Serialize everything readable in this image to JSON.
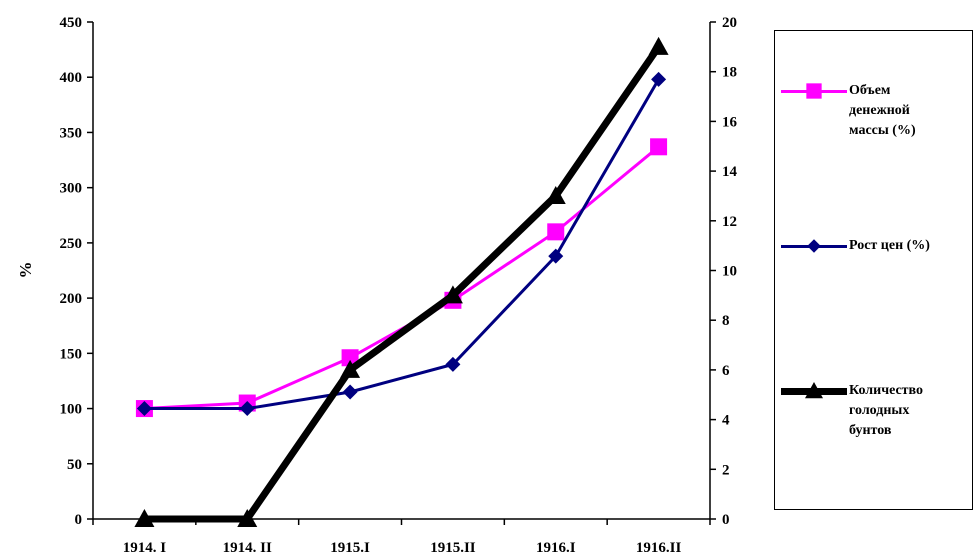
{
  "chart_data": {
    "type": "line",
    "title": "",
    "categories": [
      "1914. I",
      "1914. II",
      "1915.I",
      "1915.II",
      "1916.I",
      "1916.II"
    ],
    "ylabel": "%",
    "ylim": [
      0,
      450
    ],
    "yticks": [
      0,
      50,
      100,
      150,
      200,
      250,
      300,
      350,
      400,
      450
    ],
    "y2lim": [
      0,
      20
    ],
    "y2ticks": [
      0,
      2,
      4,
      6,
      8,
      10,
      12,
      14,
      16,
      18,
      20
    ],
    "legend_position": "right",
    "grid": false,
    "series": [
      {
        "name": "Объем денежной массы (%)",
        "legend_lines": [
          "Объем",
          "денежной",
          "массы (%)"
        ],
        "axis": "left",
        "values": [
          100,
          105,
          146,
          198,
          260,
          337
        ],
        "color": "#ff00ff",
        "marker": "square"
      },
      {
        "name": "Рост цен (%)",
        "legend_lines": [
          "Рост цен (%)"
        ],
        "axis": "left",
        "values": [
          100,
          100,
          115,
          140,
          238,
          398
        ],
        "color": "#000080",
        "marker": "diamond"
      },
      {
        "name": "Количество голодных бунтов",
        "legend_lines": [
          "Количество",
          "голодных",
          "бунтов"
        ],
        "axis": "right",
        "values": [
          0,
          0,
          6,
          9,
          13,
          19
        ],
        "color": "#000000",
        "marker": "triangle"
      }
    ]
  }
}
